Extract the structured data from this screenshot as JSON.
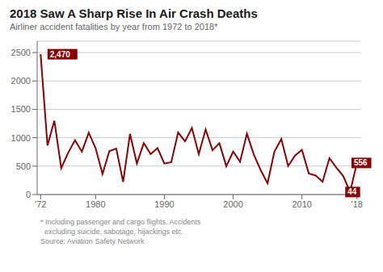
{
  "chart_data": {
    "type": "line",
    "title": "2018 Saw A Sharp Rise In Air Crash Deaths",
    "subtitle": "Airliner accident fatalities by year from 1972 to 2018*",
    "footnote": [
      "* Including passenger and cargo flights. Accidents",
      "  excluding suicide, sabotage, hijackings etc."
    ],
    "source": "Source: Aviation Safety Network",
    "x": [
      1972,
      1973,
      1974,
      1975,
      1976,
      1977,
      1978,
      1979,
      1980,
      1981,
      1982,
      1983,
      1984,
      1985,
      1986,
      1987,
      1988,
      1989,
      1990,
      1991,
      1992,
      1993,
      1994,
      1995,
      1996,
      1997,
      1998,
      1999,
      2000,
      2001,
      2002,
      2003,
      2004,
      2005,
      2006,
      2007,
      2008,
      2009,
      2010,
      2011,
      2012,
      2013,
      2014,
      2015,
      2016,
      2017,
      2018
    ],
    "values": [
      2470,
      864,
      1299,
      467,
      734,
      956,
      754,
      1089,
      814,
      362,
      764,
      809,
      223,
      1066,
      546,
      905,
      712,
      817,
      544,
      570,
      1093,
      936,
      1171,
      712,
      1146,
      780,
      904,
      499,
      757,
      577,
      1072,
      705,
      430,
      198,
      755,
      978,
      502,
      685,
      786,
      371,
      334,
      224,
      641,
      474,
      325,
      44,
      556
    ],
    "color": "#8B0000",
    "xlim": [
      1971.5,
      2018.5
    ],
    "xticks": [
      {
        "value": 1972,
        "label": "'72"
      },
      1980,
      1990,
      2000,
      2010,
      {
        "value": 2018,
        "label": "'18"
      }
    ],
    "ylim": [
      0,
      2700
    ],
    "yticks": [
      0,
      500,
      1000,
      1500,
      2000,
      2500
    ],
    "grid": true,
    "annotations": [
      {
        "text": "2,470",
        "x": 1973.0,
        "y": 2470
      },
      {
        "text": "44",
        "x": 2016.3,
        "y": 44
      },
      {
        "text": "556",
        "x": 2017.2,
        "y": 556
      }
    ]
  }
}
